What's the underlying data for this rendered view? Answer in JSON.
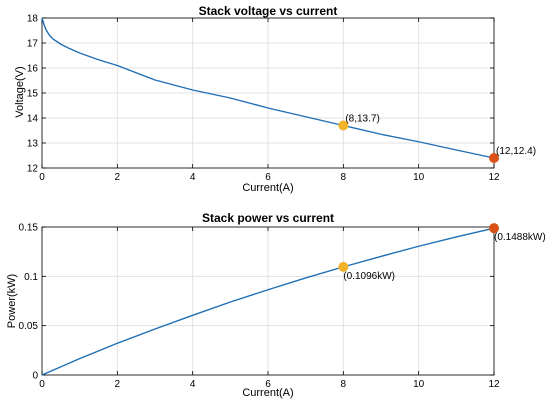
{
  "chart_data": [
    {
      "type": "line",
      "title": "Stack voltage vs current",
      "xlabel": "Current(A)",
      "ylabel": "Voltage(V)",
      "xlim": [
        0,
        12
      ],
      "ylim": [
        12,
        18
      ],
      "xticks": [
        "0",
        "2",
        "4",
        "6",
        "8",
        "10",
        "12"
      ],
      "yticks": [
        "12",
        "13",
        "14",
        "15",
        "16",
        "17",
        "18"
      ],
      "grid": true,
      "series": [
        {
          "color": "#1f6fb4",
          "x": [
            0,
            0.05,
            0.1,
            0.2,
            0.3,
            0.5,
            0.7,
            1,
            1.5,
            2,
            3,
            4,
            5,
            6,
            7,
            8,
            9,
            10,
            11,
            12
          ],
          "y": [
            18.0,
            17.75,
            17.55,
            17.3,
            17.15,
            16.95,
            16.8,
            16.6,
            16.33,
            16.1,
            15.52,
            15.12,
            14.8,
            14.4,
            14.05,
            13.7,
            13.35,
            13.05,
            12.72,
            12.4
          ]
        }
      ],
      "markers": [
        {
          "x": 8,
          "y": 13.7,
          "label": "(8,13.7)",
          "color": "#f1b32b"
        },
        {
          "x": 12,
          "y": 12.4,
          "label": "(12,12.4)",
          "color": "#d95319"
        }
      ]
    },
    {
      "type": "line",
      "title": "Stack power vs current",
      "xlabel": "Current(A)",
      "ylabel": "Power(kW)",
      "xlim": [
        0,
        12
      ],
      "ylim": [
        0,
        0.15
      ],
      "xticks": [
        "0",
        "2",
        "4",
        "6",
        "8",
        "10",
        "12"
      ],
      "yticks": [
        "0",
        "0.05",
        "0.1",
        "0.15"
      ],
      "grid": true,
      "series": [
        {
          "color": "#1f6fb4",
          "x": [
            0,
            1,
            2,
            3,
            4,
            5,
            6,
            7,
            8,
            9,
            10,
            11,
            12
          ],
          "y": [
            0,
            0.0166,
            0.0322,
            0.0466,
            0.0605,
            0.074,
            0.0864,
            0.0984,
            0.1096,
            0.1202,
            0.1305,
            0.1399,
            0.1488
          ]
        }
      ],
      "markers": [
        {
          "x": 8,
          "y": 0.1096,
          "label": "(0.1096kW)",
          "color": "#f1b32b"
        },
        {
          "x": 12,
          "y": 0.1488,
          "label": "(0.1488kW)",
          "color": "#d95319"
        }
      ]
    }
  ]
}
